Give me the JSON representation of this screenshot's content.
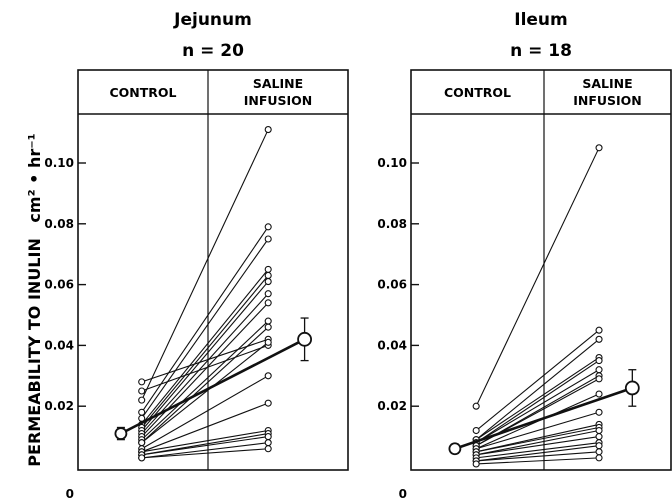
{
  "chart_data": {
    "type": "line",
    "ylabel": "PERMEABILITY TO INULIN",
    "ylabel_unit": "cm² • hr⁻¹",
    "ylim": [
      0,
      0.115
    ],
    "yticks": [
      0,
      0.02,
      0.04,
      0.06,
      0.08,
      0.1
    ],
    "ytick_labels": [
      "0",
      "0.02",
      "0.04",
      "0.06",
      "0.08",
      "0.10"
    ],
    "grid": false,
    "panels": [
      {
        "title": "Jejunum",
        "n_label": "n = 20",
        "categories": [
          "CONTROL",
          "SALINE INFUSION"
        ],
        "pairs": [
          [
            0.028,
            0.042
          ],
          [
            0.025,
            0.04
          ],
          [
            0.022,
            0.111
          ],
          [
            0.018,
            0.079
          ],
          [
            0.016,
            0.075
          ],
          [
            0.014,
            0.065
          ],
          [
            0.013,
            0.063
          ],
          [
            0.012,
            0.061
          ],
          [
            0.011,
            0.057
          ],
          [
            0.01,
            0.054
          ],
          [
            0.009,
            0.048
          ],
          [
            0.008,
            0.046
          ],
          [
            0.008,
            0.041
          ],
          [
            0.006,
            0.03
          ],
          [
            0.005,
            0.021
          ],
          [
            0.005,
            0.012
          ],
          [
            0.004,
            0.011
          ],
          [
            0.004,
            0.01
          ],
          [
            0.003,
            0.008
          ],
          [
            0.003,
            0.006
          ]
        ],
        "mean": {
          "control": 0.011,
          "control_se": 0.002,
          "saline": 0.042,
          "saline_se": 0.007
        }
      },
      {
        "title": "Ileum",
        "n_label": "n = 18",
        "categories": [
          "CONTROL",
          "SALINE INFUSION"
        ],
        "pairs": [
          [
            0.02,
            0.105
          ],
          [
            0.012,
            0.045
          ],
          [
            0.009,
            0.042
          ],
          [
            0.009,
            0.036
          ],
          [
            0.008,
            0.035
          ],
          [
            0.008,
            0.032
          ],
          [
            0.007,
            0.03
          ],
          [
            0.007,
            0.029
          ],
          [
            0.006,
            0.024
          ],
          [
            0.006,
            0.018
          ],
          [
            0.005,
            0.014
          ],
          [
            0.005,
            0.013
          ],
          [
            0.004,
            0.012
          ],
          [
            0.004,
            0.01
          ],
          [
            0.003,
            0.008
          ],
          [
            0.002,
            0.007
          ],
          [
            0.002,
            0.005
          ],
          [
            0.001,
            0.003
          ]
        ],
        "mean": {
          "control": 0.006,
          "control_se": 0.0015,
          "saline": 0.026,
          "saline_se": 0.006
        }
      }
    ]
  }
}
